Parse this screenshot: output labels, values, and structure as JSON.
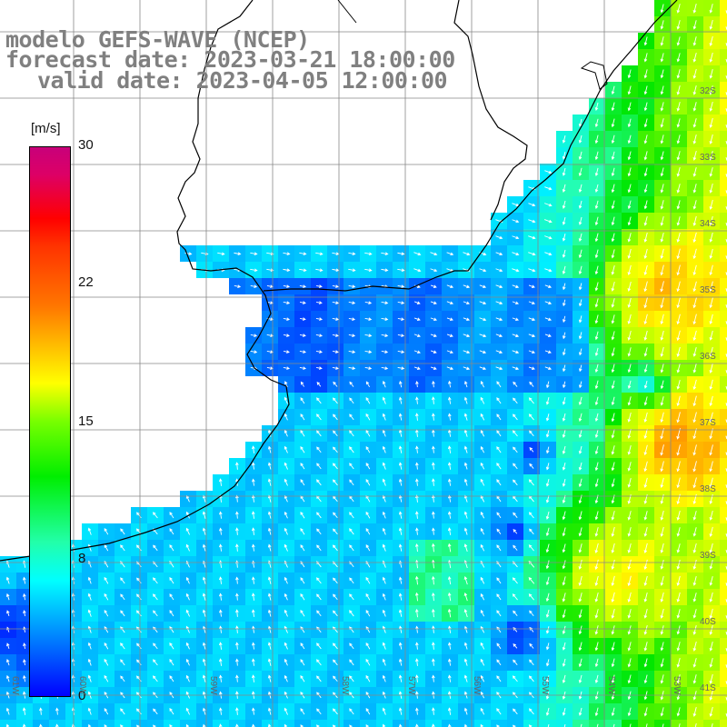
{
  "title": {
    "line1": "modelo GEFS-WAVE (NCEP)",
    "line2": "forecast date: 2023-03-21 18:00:00",
    "line3": "valid date: 2023-04-05 12:00:00"
  },
  "colorbar": {
    "unit": "[m/s]",
    "ticks": [
      "30",
      "22",
      "15",
      "8",
      "0"
    ],
    "range": [
      0,
      30
    ],
    "colors": [
      "#0000ff",
      "#00aaff",
      "#00ffff",
      "#00ee00",
      "#ffff00",
      "#ff7700",
      "#ff0000",
      "#c8007a"
    ]
  },
  "lat_labels": [
    "32S",
    "33S",
    "34S",
    "35S",
    "36S",
    "37S",
    "38S",
    "39S",
    "40S",
    "41S"
  ],
  "lon_labels": [
    "61W",
    "60W",
    "59W",
    "58W",
    "57W",
    "56W",
    "55W",
    "54W",
    "53W",
    "52W",
    "51W"
  ],
  "colors": {
    "land": "#ffffff",
    "grid": "#888888",
    "coast": "#000000",
    "text": "#808080",
    "arrows": "#ffffff"
  }
}
